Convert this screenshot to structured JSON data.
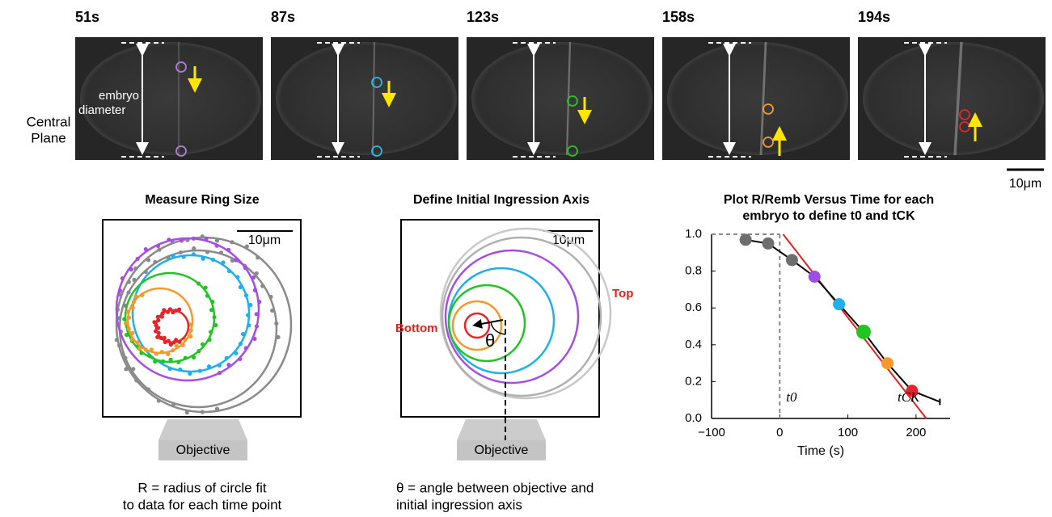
{
  "timelapse": {
    "row_label": [
      "Central",
      "Plane"
    ],
    "frames": [
      "51s",
      "87s",
      "123s",
      "158s",
      "194s"
    ],
    "diameter_label": [
      "embryo",
      "diameter"
    ],
    "scale_bar": "10μm"
  },
  "ring_panel": {
    "title": "Measure Ring Size",
    "scale_bar": "10μm",
    "objective": "Objective",
    "caption": [
      "R = radius of circle fit",
      "to data for each time point"
    ]
  },
  "axis_panel": {
    "title": "Define Initial Ingression Axis",
    "scale_bar": "10μm",
    "top_label": "Top",
    "bottom_label": "Bottom",
    "angle_label": "θ",
    "objective": "Objective",
    "caption": [
      "θ = angle between objective and",
      "initial ingression axis"
    ]
  },
  "chart_data": {
    "type": "line",
    "title": [
      "Plot R/Remb Versus Time for each",
      "embryo to define t0 and tCK"
    ],
    "x": [
      -50,
      -17,
      18,
      51,
      87,
      123,
      158,
      194,
      235
    ],
    "values": [
      0.97,
      0.95,
      0.86,
      0.77,
      0.62,
      0.47,
      0.3,
      0.15,
      0.09
    ],
    "point_colors": [
      "#6d6d6d",
      "#6d6d6d",
      "#6d6d6d",
      "#9b4ee0",
      "#1fb0ec",
      "#22c422",
      "#f39a2a",
      "#e8242a",
      null
    ],
    "line_color": "#000000",
    "fit_line": {
      "x": [
        5,
        215
      ],
      "values": [
        1.0,
        0.0
      ],
      "color": "#e8211d"
    },
    "t0_label": "t0",
    "tck_label": "tCK",
    "xlabel": "Time (s)",
    "xlim": [
      -100,
      250
    ],
    "xticks": [
      {
        "value": -100,
        "label": "−100"
      },
      0,
      100,
      200
    ],
    "ylim": [
      0,
      1.0
    ],
    "yticks": [
      {
        "value": 0,
        "label": "0.0"
      },
      0.2,
      0.4,
      0.6,
      0.8,
      {
        "value": 1.0,
        "label": "1.0"
      }
    ]
  }
}
